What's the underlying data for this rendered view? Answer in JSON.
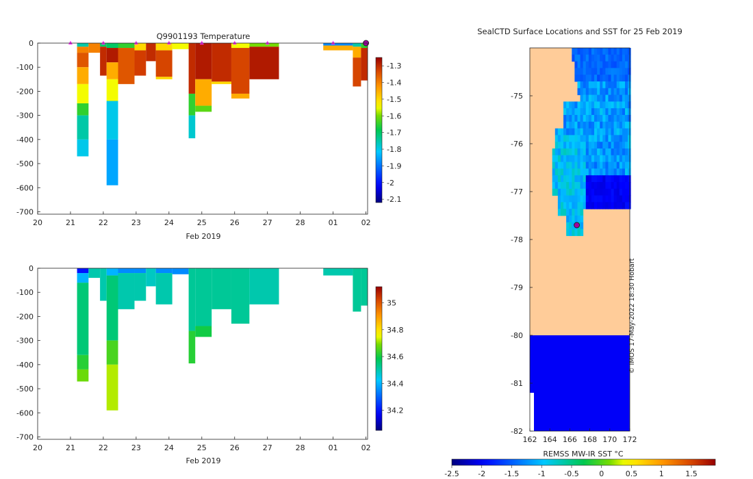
{
  "chart_data": [
    {
      "id": "temperature",
      "type": "heatmap",
      "title": "Q9901193  Temperature",
      "xlabel": "Feb 2019",
      "ylabel": "",
      "x_ticks": [
        "20",
        "21",
        "22",
        "23",
        "24",
        "25",
        "26",
        "27",
        "28",
        "01",
        "02"
      ],
      "y_ticks": [
        "0",
        "-100",
        "-200",
        "-300",
        "-400",
        "-500",
        "-600",
        "-700"
      ],
      "xlim": [
        0,
        10.05
      ],
      "ylim": [
        -710,
        0
      ],
      "colorbar": {
        "min": -2.12,
        "max": -1.25,
        "ticks": [
          "-1.3",
          "-1.4",
          "-1.5",
          "-1.6",
          "-1.7",
          "-1.8",
          "-1.9",
          "-2",
          "-2.1"
        ],
        "tick_values": [
          -1.3,
          -1.4,
          -1.5,
          -1.6,
          -1.7,
          -1.8,
          -1.9,
          -2,
          -2.1
        ]
      },
      "profile_markers_x": [
        1.0,
        2.0,
        3.0,
        4.0,
        5.0,
        6.0,
        7.0,
        9.0,
        10.0
      ],
      "profiles": [
        {
          "x0": 1.2,
          "x1": 1.55,
          "bottom": -470,
          "layers": [
            [
              0,
              -15,
              -1.75
            ],
            [
              -15,
              -40,
              -1.4
            ],
            [
              -40,
              -100,
              -1.35
            ],
            [
              -100,
              -170,
              -1.45
            ],
            [
              -170,
              -250,
              -1.55
            ],
            [
              -250,
              -300,
              -1.65
            ],
            [
              -300,
              -400,
              -1.75
            ],
            [
              -400,
              -470,
              -1.8
            ]
          ]
        },
        {
          "x0": 1.55,
          "x1": 1.9,
          "bottom": -40,
          "layers": [
            [
              0,
              -40,
              -1.4
            ]
          ]
        },
        {
          "x0": 1.9,
          "x1": 2.1,
          "bottom": -135,
          "layers": [
            [
              0,
              -15,
              -1.7
            ],
            [
              -15,
              -135,
              -1.3
            ]
          ]
        },
        {
          "x0": 2.1,
          "x1": 2.45,
          "bottom": -590,
          "layers": [
            [
              0,
              -20,
              -1.7
            ],
            [
              -20,
              -80,
              -1.28
            ],
            [
              -80,
              -150,
              -1.45
            ],
            [
              -150,
              -240,
              -1.55
            ],
            [
              -240,
              -400,
              -1.8
            ],
            [
              -400,
              -590,
              -1.85
            ]
          ]
        },
        {
          "x0": 2.45,
          "x1": 2.95,
          "bottom": -170,
          "layers": [
            [
              0,
              -20,
              -1.65
            ],
            [
              -20,
              -170,
              -1.35
            ]
          ]
        },
        {
          "x0": 2.95,
          "x1": 3.3,
          "bottom": -135,
          "layers": [
            [
              0,
              -30,
              -1.5
            ],
            [
              -30,
              -135,
              -1.32
            ]
          ]
        },
        {
          "x0": 3.3,
          "x1": 3.6,
          "bottom": -75,
          "layers": [
            [
              0,
              -75,
              -1.3
            ]
          ]
        },
        {
          "x0": 3.6,
          "x1": 4.1,
          "bottom": -150,
          "layers": [
            [
              0,
              -30,
              -1.5
            ],
            [
              -30,
              -140,
              -1.33
            ],
            [
              -140,
              -150,
              -1.5
            ]
          ]
        },
        {
          "x0": 4.1,
          "x1": 4.6,
          "bottom": -25,
          "layers": [
            [
              0,
              -25,
              -1.55
            ]
          ]
        },
        {
          "x0": 4.6,
          "x1": 4.8,
          "bottom": -395,
          "layers": [
            [
              0,
              -210,
              -1.3
            ],
            [
              -210,
              -300,
              -1.65
            ],
            [
              -300,
              -395,
              -1.78
            ]
          ]
        },
        {
          "x0": 4.8,
          "x1": 5.3,
          "bottom": -285,
          "layers": [
            [
              0,
              -150,
              -1.28
            ],
            [
              -150,
              -260,
              -1.45
            ],
            [
              -260,
              -285,
              -1.62
            ]
          ]
        },
        {
          "x0": 5.3,
          "x1": 5.9,
          "bottom": -170,
          "layers": [
            [
              0,
              -160,
              -1.3
            ],
            [
              -160,
              -170,
              -1.5
            ]
          ]
        },
        {
          "x0": 5.9,
          "x1": 6.45,
          "bottom": -230,
          "layers": [
            [
              0,
              -20,
              -1.55
            ],
            [
              -20,
              -210,
              -1.33
            ],
            [
              -210,
              -230,
              -1.45
            ]
          ]
        },
        {
          "x0": 6.45,
          "x1": 7.35,
          "bottom": -150,
          "layers": [
            [
              0,
              -15,
              -1.6
            ],
            [
              -15,
              -150,
              -1.28
            ]
          ]
        },
        {
          "x0": 8.7,
          "x1": 9.6,
          "bottom": -30,
          "layers": [
            [
              0,
              -10,
              -1.88
            ],
            [
              -10,
              -30,
              -1.45
            ]
          ]
        },
        {
          "x0": 9.6,
          "x1": 9.85,
          "bottom": -180,
          "layers": [
            [
              0,
              -15,
              -1.75
            ],
            [
              -15,
              -60,
              -1.45
            ],
            [
              -60,
              -180,
              -1.33
            ]
          ]
        },
        {
          "x0": 9.85,
          "x1": 10.05,
          "bottom": -155,
          "layers": [
            [
              0,
              -20,
              -1.65
            ],
            [
              -20,
              -155,
              -1.3
            ]
          ]
        }
      ]
    },
    {
      "id": "salinity",
      "type": "heatmap",
      "title": "",
      "xlabel": "Feb 2019",
      "ylabel": "",
      "x_ticks": [
        "20",
        "21",
        "22",
        "23",
        "24",
        "25",
        "26",
        "27",
        "28",
        "01",
        "02"
      ],
      "y_ticks": [
        "0",
        "-100",
        "-200",
        "-300",
        "-400",
        "-500",
        "-600",
        "-700"
      ],
      "xlim": [
        0,
        10.05
      ],
      "ylim": [
        -710,
        0
      ],
      "colorbar": {
        "min": 34.05,
        "max": 35.12,
        "ticks": [
          "35",
          "34.8",
          "34.6",
          "34.4",
          "34.2"
        ],
        "tick_values": [
          35,
          34.8,
          34.6,
          34.4,
          34.2
        ]
      },
      "profiles": [
        {
          "x0": 1.2,
          "x1": 1.55,
          "bottom": -470,
          "layers": [
            [
              0,
              -20,
              34.2
            ],
            [
              -20,
              -60,
              34.4
            ],
            [
              -60,
              -360,
              34.55
            ],
            [
              -360,
              -420,
              34.62
            ],
            [
              -420,
              -470,
              34.68
            ]
          ]
        },
        {
          "x0": 1.55,
          "x1": 1.9,
          "bottom": -40,
          "layers": [
            [
              0,
              -40,
              34.5
            ]
          ]
        },
        {
          "x0": 1.9,
          "x1": 2.1,
          "bottom": -135,
          "layers": [
            [
              0,
              -135,
              34.5
            ]
          ]
        },
        {
          "x0": 2.1,
          "x1": 2.45,
          "bottom": -590,
          "layers": [
            [
              0,
              -30,
              34.4
            ],
            [
              -30,
              -300,
              34.55
            ],
            [
              -300,
              -400,
              34.65
            ],
            [
              -400,
              -590,
              34.72
            ]
          ]
        },
        {
          "x0": 2.45,
          "x1": 2.95,
          "bottom": -170,
          "layers": [
            [
              0,
              -20,
              34.35
            ],
            [
              -20,
              -170,
              34.5
            ]
          ]
        },
        {
          "x0": 2.95,
          "x1": 3.3,
          "bottom": -135,
          "layers": [
            [
              0,
              -20,
              34.35
            ],
            [
              -20,
              -135,
              34.5
            ]
          ]
        },
        {
          "x0": 3.3,
          "x1": 3.6,
          "bottom": -75,
          "layers": [
            [
              0,
              -75,
              34.48
            ]
          ]
        },
        {
          "x0": 3.6,
          "x1": 4.1,
          "bottom": -150,
          "layers": [
            [
              0,
              -20,
              34.35
            ],
            [
              -20,
              -150,
              34.5
            ]
          ]
        },
        {
          "x0": 4.1,
          "x1": 4.6,
          "bottom": -25,
          "layers": [
            [
              0,
              -25,
              34.35
            ]
          ]
        },
        {
          "x0": 4.6,
          "x1": 4.8,
          "bottom": -395,
          "layers": [
            [
              0,
              -260,
              34.52
            ],
            [
              -260,
              -395,
              34.62
            ]
          ]
        },
        {
          "x0": 4.8,
          "x1": 5.3,
          "bottom": -285,
          "layers": [
            [
              0,
              -240,
              34.52
            ],
            [
              -240,
              -285,
              34.6
            ]
          ]
        },
        {
          "x0": 5.3,
          "x1": 5.9,
          "bottom": -170,
          "layers": [
            [
              0,
              -170,
              34.52
            ]
          ]
        },
        {
          "x0": 5.9,
          "x1": 6.45,
          "bottom": -230,
          "layers": [
            [
              0,
              -230,
              34.52
            ]
          ]
        },
        {
          "x0": 6.45,
          "x1": 7.35,
          "bottom": -150,
          "layers": [
            [
              0,
              -150,
              34.5
            ]
          ]
        },
        {
          "x0": 8.7,
          "x1": 9.6,
          "bottom": -30,
          "layers": [
            [
              0,
              -30,
              34.5
            ]
          ]
        },
        {
          "x0": 9.6,
          "x1": 9.85,
          "bottom": -180,
          "layers": [
            [
              0,
              -180,
              34.52
            ]
          ]
        },
        {
          "x0": 9.85,
          "x1": 10.05,
          "bottom": -155,
          "layers": [
            [
              0,
              -155,
              34.52
            ]
          ]
        }
      ]
    },
    {
      "id": "sst-map",
      "type": "heatmap",
      "title": "SealCTD Surface Locations and SST for 25 Feb 2019",
      "xlabel": "",
      "x_ticks": [
        "162",
        "164",
        "166",
        "168",
        "170",
        "172"
      ],
      "x_tick_values": [
        162,
        164,
        166,
        168,
        170,
        172
      ],
      "y_ticks": [
        "-75",
        "-76",
        "-77",
        "-78",
        "-79",
        "-80",
        "-81",
        "-82"
      ],
      "y_tick_values": [
        -75,
        -76,
        -77,
        -78,
        -79,
        -80,
        -81,
        -82
      ],
      "xlim": [
        162,
        172
      ],
      "ylim": [
        -82,
        -74
      ],
      "land_color": "#ffcc99",
      "ice_shelf_lat": -80,
      "position_marker": {
        "lon": 166.7,
        "lat": -77.7
      },
      "colorbar": {
        "label": "REMSS MW-IR SST °C",
        "min": -2.5,
        "max": 1.9,
        "ticks": [
          "-2.5",
          "-2",
          "-1.5",
          "-1",
          "-0.5",
          "0",
          "0.5",
          "1",
          "1.5"
        ],
        "tick_values": [
          -2.5,
          -2,
          -1.5,
          -1,
          -0.5,
          0,
          0.5,
          1,
          1.5
        ]
      }
    }
  ],
  "credit": "© IMOS 17-May-2022 18:30 Hobart"
}
